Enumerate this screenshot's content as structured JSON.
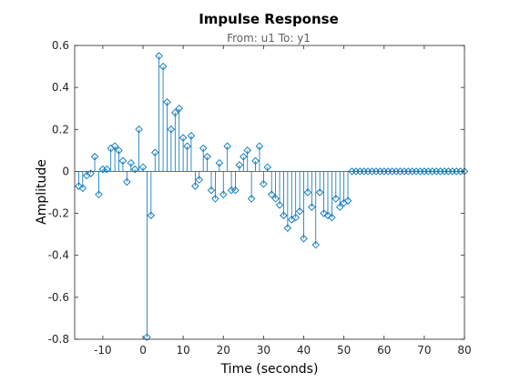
{
  "chart_data": {
    "type": "stem",
    "title": "Impulse Response",
    "subtitle": "From: u1  To: y1",
    "xlabel": "Time (seconds)",
    "ylabel": "Amplitude",
    "xlim": [
      -17,
      80
    ],
    "ylim": [
      -0.8,
      0.6
    ],
    "xticks": [
      -10,
      0,
      10,
      20,
      30,
      40,
      50,
      60,
      70,
      80
    ],
    "yticks": [
      -0.8,
      -0.6,
      -0.4,
      -0.2,
      0,
      0.2,
      0.4,
      0.6
    ],
    "ytick_labels": [
      "-0.8",
      "-0.6",
      "-0.4",
      "-0.2",
      "0",
      "0.2",
      "0.4",
      "0.6"
    ],
    "grid": false,
    "marker": "diamond",
    "colors": {
      "series": "#0072bd",
      "axis": "#262626",
      "subtitle": "#606060"
    },
    "x": [
      -16,
      -15,
      -14,
      -13,
      -12,
      -11,
      -10,
      -9,
      -8,
      -7,
      -6,
      -5,
      -4,
      -3,
      -2,
      -1,
      0,
      1,
      2,
      3,
      4,
      5,
      6,
      7,
      8,
      9,
      10,
      11,
      12,
      13,
      14,
      15,
      16,
      17,
      18,
      19,
      20,
      21,
      22,
      23,
      24,
      25,
      26,
      27,
      28,
      29,
      30,
      31,
      32,
      33,
      34,
      35,
      36,
      37,
      38,
      39,
      40,
      41,
      42,
      43,
      44,
      45,
      46,
      47,
      48,
      49,
      50,
      51,
      52,
      53,
      54,
      55,
      56,
      57,
      58,
      59,
      60,
      61,
      62,
      63,
      64,
      65,
      66,
      67,
      68,
      69,
      70,
      71,
      72,
      73,
      74,
      75,
      76,
      77,
      78,
      79,
      80
    ],
    "y": [
      -0.07,
      -0.08,
      -0.02,
      -0.01,
      0.07,
      -0.11,
      0.01,
      0.01,
      0.11,
      0.12,
      0.1,
      0.05,
      -0.05,
      0.04,
      0.01,
      0.2,
      0.02,
      -0.79,
      -0.21,
      0.09,
      0.55,
      0.5,
      0.33,
      0.2,
      0.28,
      0.3,
      0.16,
      0.12,
      0.17,
      -0.07,
      -0.04,
      0.11,
      0.07,
      -0.09,
      -0.13,
      0.04,
      -0.11,
      0.12,
      -0.09,
      -0.09,
      0.03,
      0.07,
      0.1,
      -0.13,
      0.05,
      0.12,
      -0.06,
      0.02,
      -0.11,
      -0.13,
      -0.16,
      -0.21,
      -0.27,
      -0.23,
      -0.22,
      -0.19,
      -0.32,
      -0.1,
      -0.17,
      -0.35,
      -0.1,
      -0.2,
      -0.21,
      -0.22,
      -0.13,
      -0.17,
      -0.15,
      -0.14,
      0,
      0,
      0,
      0,
      0,
      0,
      0,
      0,
      0,
      0,
      0,
      0,
      0,
      0,
      0,
      0,
      0,
      0,
      0,
      0,
      0,
      0,
      0,
      0,
      0,
      0,
      0,
      0,
      0
    ]
  }
}
